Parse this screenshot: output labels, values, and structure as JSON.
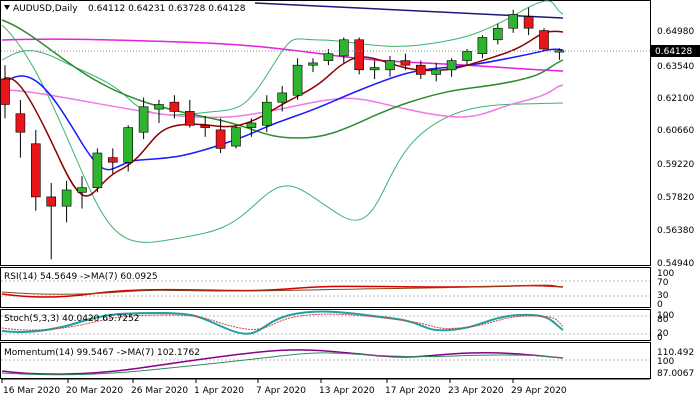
{
  "header": {
    "symbol": "AUDUSD,Daily",
    "ohlc": "0.64112 0.64231 0.63728 0.64128"
  },
  "main_chart": {
    "current_price_label": "0.64128",
    "price_ticks": [
      "0.64980",
      "0.63540",
      "0.62100",
      "0.60660",
      "0.59220",
      "0.57820",
      "0.56380",
      "0.54940"
    ]
  },
  "rsi_panel": {
    "title": "RSI(14) 54.5649  ->MA(7) 60.0925",
    "ticks": [
      "100",
      "70",
      "30",
      "0"
    ]
  },
  "stoch_panel": {
    "title": "Stoch(5,3,3) 40.0420 65.7252",
    "ticks": [
      "100",
      "80",
      "20",
      "0"
    ]
  },
  "momentum_panel": {
    "title": "Momentum(14) 99.5467  ->MA(7) 102.1762",
    "ticks": [
      "110.492",
      "100",
      "87.0067"
    ]
  },
  "date_axis": {
    "labels": [
      "16 Mar 2020",
      "20 Mar 2020",
      "26 Mar 2020",
      "1 Apr 2020",
      "7 Apr 2020",
      "13 Apr 2020",
      "17 Apr 2020",
      "23 Apr 2020",
      "29 Apr 2020"
    ]
  },
  "colors": {
    "bull": "#2db52d",
    "bear": "#e8151b",
    "upper_line": "#1a1a7a",
    "magenta": "#e81ee0",
    "pink": "#f07ae8",
    "blue": "#1a1aff",
    "darkred": "#8b0000",
    "green_sma": "#2e8b2e",
    "bb_outer": "#3cb371",
    "rsi_line": "#d40000",
    "rsi_ma": "#8b4513",
    "stoch_k": "#20a0a0",
    "stoch_d": "#d04040",
    "mom_line": "#8b008b",
    "mom_ma": "#2e8b57"
  },
  "chart_data": {
    "type": "candlestick",
    "symbol": "AUDUSD",
    "timeframe": "Daily",
    "last_ohlc": {
      "open": 0.64112,
      "high": 0.64231,
      "low": 0.63728,
      "close": 0.64128
    },
    "candles": [
      {
        "o": 0.629,
        "h": 0.635,
        "l": 0.612,
        "c": 0.618
      },
      {
        "o": 0.614,
        "h": 0.62,
        "l": 0.595,
        "c": 0.606
      },
      {
        "o": 0.601,
        "h": 0.607,
        "l": 0.572,
        "c": 0.578
      },
      {
        "o": 0.578,
        "h": 0.584,
        "l": 0.551,
        "c": 0.574
      },
      {
        "o": 0.574,
        "h": 0.585,
        "l": 0.567,
        "c": 0.581
      },
      {
        "o": 0.58,
        "h": 0.587,
        "l": 0.573,
        "c": 0.582
      },
      {
        "o": 0.582,
        "h": 0.599,
        "l": 0.58,
        "c": 0.597
      },
      {
        "o": 0.595,
        "h": 0.599,
        "l": 0.588,
        "c": 0.593
      },
      {
        "o": 0.593,
        "h": 0.609,
        "l": 0.589,
        "c": 0.608
      },
      {
        "o": 0.606,
        "h": 0.621,
        "l": 0.603,
        "c": 0.617
      },
      {
        "o": 0.616,
        "h": 0.62,
        "l": 0.61,
        "c": 0.618
      },
      {
        "o": 0.619,
        "h": 0.622,
        "l": 0.612,
        "c": 0.615
      },
      {
        "o": 0.615,
        "h": 0.62,
        "l": 0.608,
        "c": 0.609
      },
      {
        "o": 0.609,
        "h": 0.613,
        "l": 0.604,
        "c": 0.608
      },
      {
        "o": 0.607,
        "h": 0.612,
        "l": 0.597,
        "c": 0.599
      },
      {
        "o": 0.6,
        "h": 0.609,
        "l": 0.599,
        "c": 0.608
      },
      {
        "o": 0.608,
        "h": 0.612,
        "l": 0.604,
        "c": 0.61
      },
      {
        "o": 0.609,
        "h": 0.622,
        "l": 0.606,
        "c": 0.619
      },
      {
        "o": 0.619,
        "h": 0.626,
        "l": 0.615,
        "c": 0.623
      },
      {
        "o": 0.622,
        "h": 0.638,
        "l": 0.62,
        "c": 0.635
      },
      {
        "o": 0.635,
        "h": 0.638,
        "l": 0.632,
        "c": 0.636
      },
      {
        "o": 0.637,
        "h": 0.642,
        "l": 0.635,
        "c": 0.64
      },
      {
        "o": 0.639,
        "h": 0.647,
        "l": 0.636,
        "c": 0.646
      },
      {
        "o": 0.646,
        "h": 0.647,
        "l": 0.631,
        "c": 0.633
      },
      {
        "o": 0.633,
        "h": 0.637,
        "l": 0.629,
        "c": 0.634
      },
      {
        "o": 0.633,
        "h": 0.639,
        "l": 0.63,
        "c": 0.637
      },
      {
        "o": 0.637,
        "h": 0.64,
        "l": 0.633,
        "c": 0.635
      },
      {
        "o": 0.635,
        "h": 0.637,
        "l": 0.629,
        "c": 0.631
      },
      {
        "o": 0.631,
        "h": 0.636,
        "l": 0.628,
        "c": 0.633
      },
      {
        "o": 0.633,
        "h": 0.638,
        "l": 0.63,
        "c": 0.637
      },
      {
        "o": 0.637,
        "h": 0.642,
        "l": 0.635,
        "c": 0.641
      },
      {
        "o": 0.64,
        "h": 0.648,
        "l": 0.638,
        "c": 0.647
      },
      {
        "o": 0.646,
        "h": 0.653,
        "l": 0.644,
        "c": 0.651
      },
      {
        "o": 0.651,
        "h": 0.659,
        "l": 0.649,
        "c": 0.657
      },
      {
        "o": 0.656,
        "h": 0.66,
        "l": 0.648,
        "c": 0.651
      },
      {
        "o": 0.65,
        "h": 0.651,
        "l": 0.641,
        "c": 0.642
      },
      {
        "o": 0.6411,
        "h": 0.6423,
        "l": 0.6373,
        "c": 0.6413
      }
    ]
  }
}
